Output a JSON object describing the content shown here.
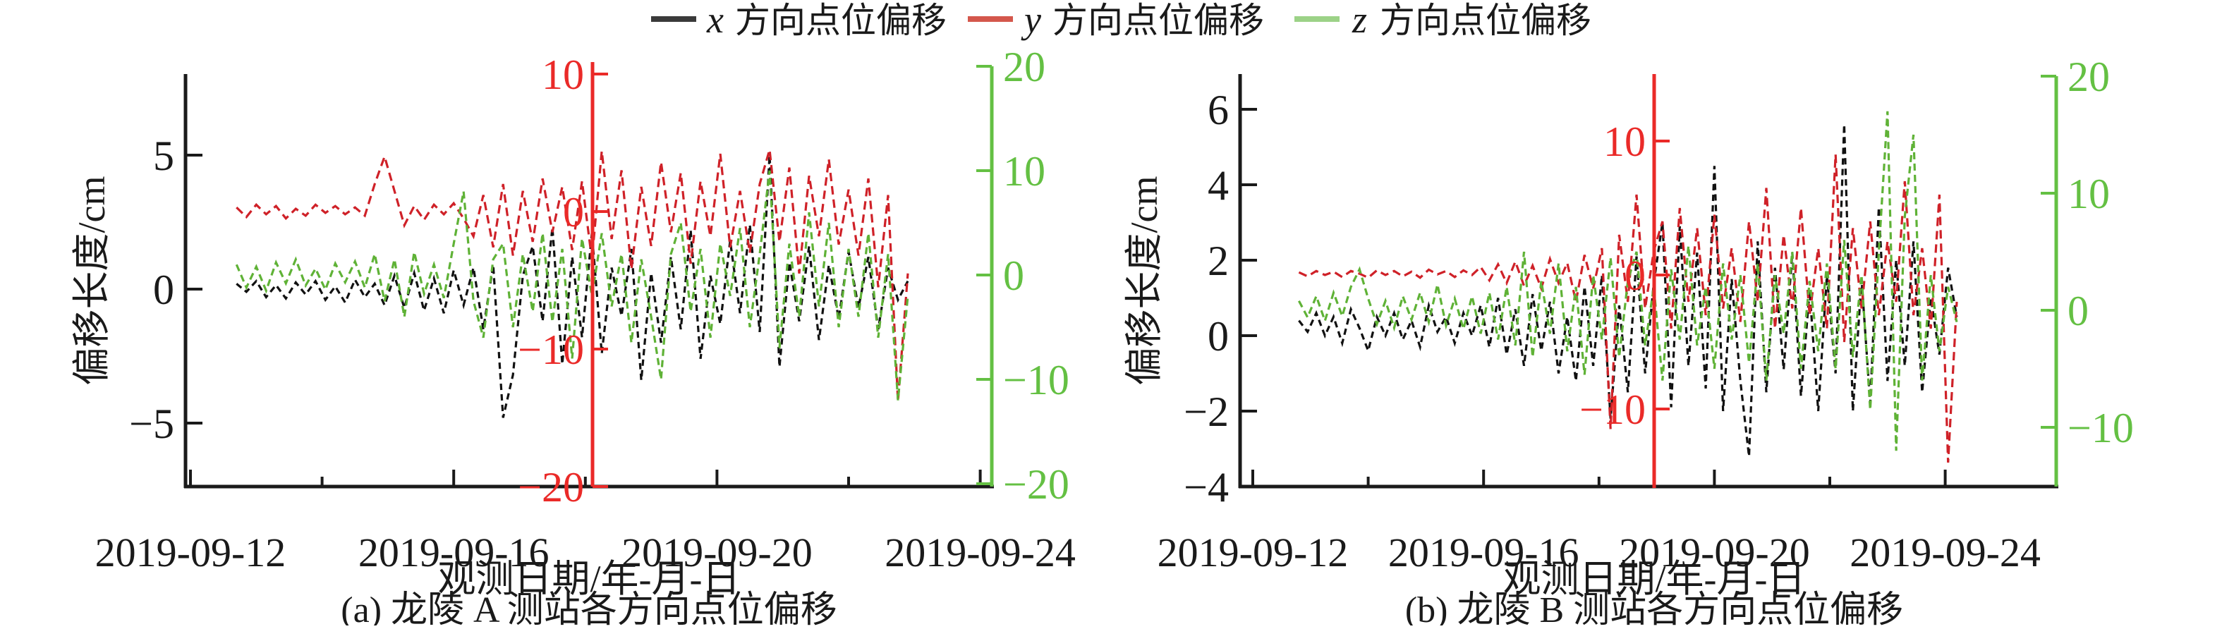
{
  "colors": {
    "legend_black": "#3a3a3a",
    "legend_red": "#d4574c",
    "legend_green": "#9cd287",
    "curve_black": "#111111",
    "curve_red": "#cf2128",
    "curve_green": "#5fb236",
    "axis_black": "#1a1a1a",
    "axis_red": "#ea2a28",
    "axis_green": "#64c043"
  },
  "legend": {
    "items": [
      {
        "var": "x",
        "text": " 方向点位偏移",
        "color": "#3a3a3a"
      },
      {
        "var": "y",
        "text": " 方向点位偏移",
        "color": "#d4574c"
      },
      {
        "var": "z",
        "text": " 方向点位偏移",
        "color": "#9cd287"
      }
    ]
  },
  "chart_data": [
    {
      "id": "a",
      "type": "line",
      "title": "(a) 龙陵 A 测站各方向点位偏移",
      "xlabel": "观测日期/年-月-日",
      "ylabel_left": "偏移长度/cm",
      "x_date_zero": "2019-09-12",
      "axes": {
        "left": {
          "ticks": [
            5,
            0,
            -5
          ],
          "range": [
            -7.4,
            8.0
          ],
          "unit": "cm"
        },
        "red": {
          "ticks": [
            10,
            0,
            -10,
            -20
          ],
          "range": [
            -20,
            10.9
          ]
        },
        "green": {
          "ticks": [
            20,
            10,
            0,
            -10,
            -20
          ],
          "range": [
            -20.3,
            20.4
          ]
        },
        "x": {
          "tick_labels": [
            "2019-09-12",
            "2019-09-16",
            "2019-09-20",
            "2019-09-24"
          ],
          "tick_days": [
            0,
            4,
            8,
            12
          ],
          "minor_tick_days": [
            2,
            6,
            10
          ]
        }
      },
      "series": [
        {
          "name": "x 方向点位偏移",
          "dir": "x",
          "axis": "left",
          "color": "#111111",
          "start_day": 0.7,
          "step_day": 0.15,
          "values": [
            0.2,
            -0.1,
            0.3,
            -0.3,
            0.15,
            -0.35,
            0.25,
            -0.2,
            0.3,
            -0.4,
            0.1,
            -0.5,
            0.35,
            -0.3,
            0.2,
            -0.6,
            0.5,
            -0.7,
            0.6,
            -0.8,
            0.4,
            -0.9,
            0.7,
            -0.6,
            0.8,
            -1.5,
            0.9,
            -4.8,
            -3.2,
            0.5,
            1.6,
            -1.2,
            2.3,
            -2.8,
            1.2,
            -1.8,
            2.1,
            -2.4,
            0.8,
            -1.0,
            1.5,
            -3.4,
            0.6,
            -2.0,
            1.2,
            -1.5,
            2.2,
            -2.6,
            0.5,
            -1.3,
            1.8,
            -0.9,
            2.4,
            -1.6,
            5.0,
            -2.9,
            1.0,
            -1.2,
            1.6,
            -1.9,
            0.9,
            -1.1,
            1.4,
            -0.7,
            1.2,
            -1.5,
            0.8,
            -0.4,
            0.3
          ]
        },
        {
          "name": "y 方向点位偏移",
          "dir": "y",
          "axis": "red",
          "color": "#cf2128",
          "start_day": 0.7,
          "step_day": 0.15,
          "values": [
            0.3,
            -0.4,
            0.5,
            -0.2,
            0.4,
            -0.5,
            0.2,
            -0.3,
            0.5,
            -0.1,
            0.4,
            -0.2,
            0.3,
            -0.3,
            2.0,
            4.0,
            1.5,
            -1.0,
            0.4,
            -0.6,
            0.5,
            -0.2,
            0.6,
            -0.5,
            -1.8,
            1.2,
            -2.6,
            2.0,
            -3.2,
            1.5,
            -2.2,
            2.4,
            -1.5,
            1.8,
            -2.8,
            2.2,
            -3.5,
            4.4,
            -2.0,
            3.0,
            -4.2,
            1.8,
            -2.5,
            3.6,
            -1.5,
            2.8,
            -3.8,
            2.2,
            -1.8,
            4.2,
            -2.6,
            1.5,
            -3.0,
            2.0,
            4.5,
            -2.2,
            3.2,
            -4.5,
            2.6,
            -1.8,
            3.8,
            -2.4,
            1.6,
            -3.2,
            2.4,
            -5.5,
            1.2,
            -13.8,
            -4.5
          ]
        },
        {
          "name": "z 方向点位偏移",
          "dir": "z",
          "axis": "green",
          "color": "#5fb236",
          "start_day": 0.7,
          "step_day": 0.15,
          "values": [
            1.0,
            -1.2,
            0.8,
            -1.5,
            1.2,
            -0.8,
            1.5,
            -1.0,
            0.6,
            -1.4,
            1.1,
            -0.7,
            1.3,
            -1.2,
            2.0,
            -2.5,
            1.5,
            -4.0,
            2.2,
            -1.8,
            1.0,
            -2.2,
            3.0,
            8.0,
            -2.5,
            -6.0,
            1.5,
            3.0,
            -5.0,
            2.0,
            -3.5,
            4.0,
            -4.5,
            2.5,
            -8.0,
            3.5,
            -2.0,
            4.0,
            -3.0,
            2.0,
            -6.5,
            1.5,
            -4.0,
            -10.0,
            2.0,
            5.0,
            -3.5,
            2.5,
            -6.0,
            3.0,
            -2.0,
            4.5,
            -5.0,
            2.0,
            10.0,
            -7.0,
            3.0,
            -4.0,
            6.0,
            -3.0,
            5.0,
            -5.0,
            2.5,
            -4.0,
            4.0,
            -6.0,
            2.0,
            -12.0,
            -2.0
          ]
        }
      ]
    },
    {
      "id": "b",
      "type": "line",
      "title": "(b) 龙陵 B 测站各方向点位偏移",
      "xlabel": "观测日期/年-月-日",
      "ylabel_left": "偏移长度/cm",
      "x_date_zero": "2019-09-12",
      "axes": {
        "left": {
          "ticks": [
            6,
            4,
            2,
            0,
            -2,
            -4
          ],
          "range": [
            -4,
            6.9
          ],
          "unit": "cm"
        },
        "red": {
          "ticks": [
            10,
            0,
            -10
          ],
          "range": [
            -15.9,
            15.0
          ]
        },
        "green": {
          "ticks": [
            20,
            10,
            0,
            -10
          ],
          "range": [
            -15.1,
            20.0
          ]
        },
        "x": {
          "tick_labels": [
            "2019-09-12",
            "2019-09-16",
            "2019-09-20",
            "2019-09-24"
          ],
          "tick_days": [
            0,
            4,
            8,
            12
          ],
          "minor_tick_days": [
            2,
            6,
            10
          ]
        }
      },
      "series": [
        {
          "name": "x 方向点位偏移",
          "dir": "x",
          "axis": "left",
          "color": "#111111",
          "start_day": 0.8,
          "step_day": 0.15,
          "values": [
            0.4,
            0.1,
            0.6,
            0.0,
            0.5,
            -0.2,
            0.7,
            0.2,
            -0.4,
            0.5,
            0.0,
            0.6,
            -0.1,
            0.4,
            -0.3,
            0.8,
            0.1,
            0.5,
            -0.2,
            0.6,
            0.0,
            0.8,
            -0.3,
            1.0,
            -0.5,
            0.7,
            -0.8,
            1.1,
            -0.4,
            0.9,
            -1.0,
            0.5,
            -1.2,
            1.3,
            -0.8,
            1.6,
            -2.2,
            0.8,
            -1.5,
            2.1,
            -1.0,
            1.4,
            3.0,
            -1.9,
            2.9,
            -0.8,
            2.2,
            -1.4,
            4.5,
            -2.0,
            1.5,
            -1.2,
            -3.2,
            2.5,
            -1.5,
            1.8,
            -0.9,
            2.2,
            -1.6,
            1.2,
            -2.0,
            1.6,
            -1.0,
            5.6,
            -2.0,
            1.5,
            -1.8,
            3.4,
            -1.2,
            2.0,
            -0.8,
            2.5,
            -1.5,
            1.0,
            -0.5,
            1.8,
            0.5
          ]
        },
        {
          "name": "y 方向点位偏移",
          "dir": "y",
          "axis": "red",
          "color": "#cf2128",
          "start_day": 0.8,
          "step_day": 0.15,
          "values": [
            0.2,
            -0.1,
            0.3,
            0.0,
            0.25,
            -0.15,
            0.3,
            0.1,
            -0.2,
            0.35,
            0.0,
            0.3,
            -0.1,
            0.25,
            -0.2,
            0.4,
            0.05,
            0.3,
            -0.15,
            0.35,
            0.0,
            0.6,
            -0.4,
            0.8,
            -0.6,
            1.0,
            -0.8,
            0.7,
            -1.0,
            1.2,
            -0.6,
            0.9,
            -2.0,
            1.5,
            -1.0,
            2.0,
            -11.5,
            3.0,
            -2.0,
            6.0,
            -2.5,
            1.8,
            4.0,
            -4.0,
            5.0,
            -2.0,
            3.5,
            -3.0,
            4.5,
            -2.5,
            2.0,
            -3.5,
            4.0,
            -2.0,
            6.5,
            -4.0,
            3.0,
            -2.5,
            5.0,
            -3.0,
            2.0,
            -4.0,
            9.0,
            -5.0,
            3.5,
            -2.5,
            4.0,
            -3.0,
            2.5,
            -2.0,
            7.0,
            -3.0,
            2.0,
            -4.0,
            6.0,
            -14.0,
            -2.0
          ]
        },
        {
          "name": "z 方向点位偏移",
          "dir": "z",
          "axis": "green",
          "color": "#5fb236",
          "start_day": 0.8,
          "step_day": 0.15,
          "values": [
            0.8,
            -0.6,
            1.2,
            -0.9,
            1.5,
            -0.5,
            2.0,
            3.5,
            1.0,
            -1.2,
            0.8,
            -1.5,
            1.2,
            -0.8,
            1.5,
            -1.0,
            2.2,
            -1.3,
            1.0,
            -1.6,
            1.2,
            -2.0,
            1.5,
            -2.5,
            2.0,
            -3.0,
            5.0,
            -4.0,
            2.5,
            -2.0,
            4.0,
            -3.5,
            2.0,
            -5.5,
            3.0,
            -2.5,
            4.5,
            -4.0,
            2.5,
            5.0,
            -3.0,
            2.0,
            -6.0,
            3.5,
            -2.5,
            5.5,
            -3.0,
            2.0,
            -5.0,
            4.0,
            -2.5,
            3.0,
            -4.5,
            4.0,
            -6.0,
            3.0,
            -2.0,
            5.0,
            -5.0,
            2.5,
            -3.5,
            4.0,
            -5.0,
            6.0,
            -4.0,
            3.0,
            -8.5,
            5.0,
            17.0,
            -12.0,
            8.0,
            15.0,
            -6.0,
            3.0,
            -3.5,
            2.0,
            -1.0
          ]
        }
      ]
    }
  ]
}
